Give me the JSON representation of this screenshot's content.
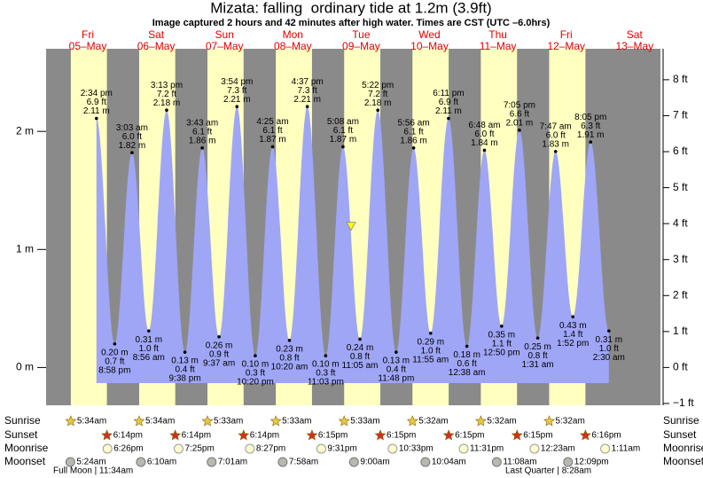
{
  "chart_data": {
    "type": "area",
    "title": "Mizata: falling  ordinary tide at 1.2m (3.9ft)",
    "subtitle": "Image captured 2 hours and 42 minutes after high water. Times are CST (UTC –6.0hrs)",
    "categories": [
      "Fri",
      "Sat",
      "Sun",
      "Mon",
      "Tue",
      "Wed",
      "Thu",
      "Fri",
      "Sat"
    ],
    "dates": [
      "05–May",
      "06–May",
      "07–May",
      "08–May",
      "09–May",
      "10–May",
      "11–May",
      "12–May",
      "13–May"
    ],
    "x": [
      "2:34 pm",
      "8:58 pm",
      "3:03 am",
      "8:56 am",
      "3:13 pm",
      "9:38 pm",
      "3:43 am",
      "9:37 am",
      "3:54 pm",
      "10:20 pm",
      "4:25 am",
      "10:20 am",
      "4:37 pm",
      "11:03 pm",
      "5:08 am",
      "11:05 am",
      "5:22 pm",
      "11:48 pm",
      "5:56 am",
      "11:55 am",
      "6:11 pm",
      "12:38 am",
      "6:48 am",
      "12:50 pm",
      "7:05 pm",
      "1:31 am",
      "7:47 am",
      "1:52 pm",
      "8:05 pm",
      "2:30 am"
    ],
    "values": [
      2.11,
      0.2,
      1.82,
      0.31,
      2.18,
      0.13,
      1.86,
      0.26,
      2.21,
      0.1,
      1.87,
      0.23,
      2.21,
      0.1,
      1.87,
      0.24,
      2.18,
      0.13,
      1.86,
      0.29,
      2.11,
      0.18,
      1.84,
      0.35,
      2.01,
      0.25,
      1.83,
      0.43,
      1.91,
      0.31
    ],
    "value_labels": [
      "2.11 m",
      "0.20 m",
      "1.82 m",
      "0.31 m",
      "2.18 m",
      "0.13 m",
      "1.86 m",
      "0.26 m",
      "2.21 m",
      "0.10 m",
      "1.87 m",
      "0.23 m",
      "2.21 m",
      "0.10 m",
      "1.87 m",
      "0.24 m",
      "2.18 m",
      "0.13 m",
      "1.86 m",
      "0.29 m",
      "2.11 m",
      "0.18 m",
      "1.84 m",
      "0.35 m",
      "2.01 m",
      "0.25 m",
      "1.83 m",
      "0.43 m",
      "1.91 m",
      "0.31 m"
    ],
    "ft_labels": [
      "6.9 ft",
      "0.7 ft",
      "6.0 ft",
      "1.0 ft",
      "7.2 ft",
      "0.4 ft",
      "6.1 ft",
      "0.9 ft",
      "7.3 ft",
      "0.3 ft",
      "6.1 ft",
      "0.8 ft",
      "7.3 ft",
      "0.3 ft",
      "6.1 ft",
      "0.8 ft",
      "7.2 ft",
      "0.4 ft",
      "6.1 ft",
      "1.0 ft",
      "6.9 ft",
      "0.6 ft",
      "6.0 ft",
      "1.1 ft",
      "6.6 ft",
      "0.8 ft",
      "6.0 ft",
      "1.4 ft",
      "6.3 ft",
      "1.0 ft"
    ],
    "color": "#9fa6f6",
    "night_color": "#8a8a8a",
    "day_color": "#ffffc0",
    "marker_value": 1.2,
    "ylim": [
      -0.32,
      2.7
    ],
    "yticks": [
      {
        "value": 0,
        "label": "0 m"
      },
      {
        "value": 1,
        "label": "1 m"
      },
      {
        "value": 2,
        "label": "2 m"
      }
    ],
    "y2lim": [
      -1.05,
      8.86
    ],
    "y2ticks": [
      {
        "value": -1,
        "label": "−1 ft"
      },
      {
        "value": 0,
        "label": "0 ft"
      },
      {
        "value": 1,
        "label": "1 ft"
      },
      {
        "value": 2,
        "label": "2 ft"
      },
      {
        "value": 3,
        "label": "3 ft"
      },
      {
        "value": 4,
        "label": "4 ft"
      },
      {
        "value": 5,
        "label": "5 ft"
      },
      {
        "value": 6,
        "label": "6 ft"
      },
      {
        "value": 7,
        "label": "7 ft"
      },
      {
        "value": 8,
        "label": "8 ft"
      }
    ],
    "astro": [
      {
        "name": "Sunrise",
        "times": [
          "5:34am",
          "5:34am",
          "5:33am",
          "5:33am",
          "5:33am",
          "5:32am",
          "5:32am",
          "5:32am",
          null
        ]
      },
      {
        "name": "Sunset",
        "times": [
          "6:14pm",
          "6:14pm",
          "6:14pm",
          "6:15pm",
          "6:15pm",
          "6:15pm",
          "6:15pm",
          "6:16pm",
          null
        ]
      },
      {
        "name": "Moonrise",
        "times": [
          "6:26pm",
          "7:25pm",
          "8:27pm",
          "9:31pm",
          "10:33pm",
          "11:31pm",
          null,
          "12:23am",
          "1:11am"
        ]
      },
      {
        "name": "Moonset",
        "times": [
          "5:24am",
          "6:10am",
          "7:01am",
          "7:58am",
          "9:00am",
          "10:04am",
          "11:08am",
          "12:09pm",
          null
        ]
      }
    ],
    "phases": [
      "Full Moon | 11:34am",
      "Last Quarter | 8:28am"
    ]
  }
}
